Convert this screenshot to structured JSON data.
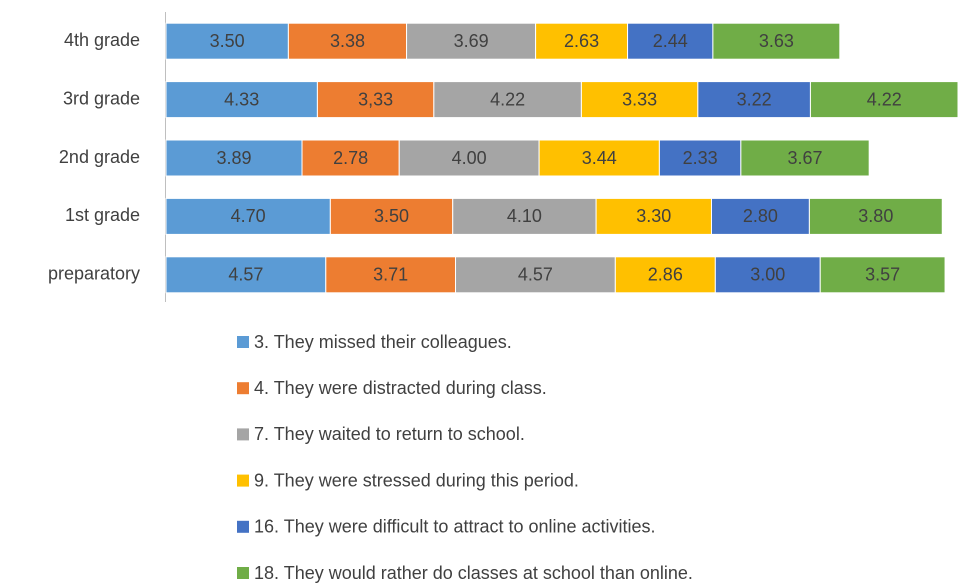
{
  "chart_data": {
    "type": "stacked-barh",
    "categories": [
      "4th grade",
      "3rd grade",
      "2nd grade",
      "1st grade",
      "preparatory"
    ],
    "series": [
      {
        "name": "3. They missed their colleagues.",
        "color": "#5b9bd5",
        "values": [
          3.5,
          4.33,
          3.89,
          4.7,
          4.57
        ],
        "value_labels": [
          "3.50",
          "4.33",
          "3.89",
          "4.70",
          "4.57"
        ]
      },
      {
        "name": "4. They were distracted during class.",
        "color": "#ed7d31",
        "values": [
          3.38,
          3.33,
          2.78,
          3.5,
          3.71
        ],
        "value_labels": [
          "3.38",
          "3,33",
          "2.78",
          "3.50",
          "3.71"
        ]
      },
      {
        "name": "7. They waited to return to school.",
        "color": "#a5a5a5",
        "values": [
          3.69,
          4.22,
          4.0,
          4.1,
          4.57
        ],
        "value_labels": [
          "3.69",
          "4.22",
          "4.00",
          "4.10",
          "4.57"
        ]
      },
      {
        "name": "9. They were stressed during this period.",
        "color": "#ffc000",
        "values": [
          2.63,
          3.33,
          3.44,
          3.3,
          2.86
        ],
        "value_labels": [
          "2.63",
          "3.33",
          "3.44",
          "3.30",
          "2.86"
        ]
      },
      {
        "name": "16. They were difficult to attract to online activities.",
        "color": "#4472c4",
        "values": [
          2.44,
          3.22,
          2.33,
          2.8,
          3.0
        ],
        "value_labels": [
          "2.44",
          "3.22",
          "2.33",
          "2.80",
          "3.00"
        ]
      },
      {
        "name": "18. They would rather do classes at school than online.",
        "color": "#70ad47",
        "values": [
          3.63,
          4.22,
          3.67,
          3.8,
          3.57
        ],
        "value_labels": [
          "3.63",
          "4.22",
          "3.67",
          "3.80",
          "3.57"
        ]
      }
    ],
    "legend": "bottom"
  }
}
